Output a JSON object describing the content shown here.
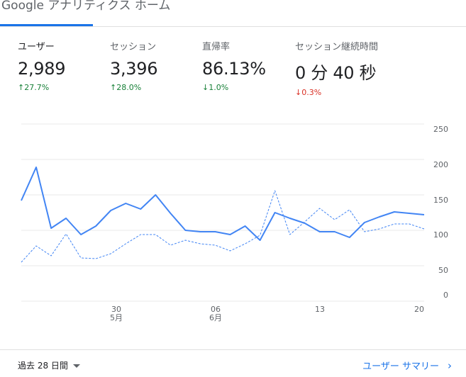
{
  "header": {
    "title": "Google アナリティクス ホーム"
  },
  "metrics": [
    {
      "label": "ユーザー",
      "value": "2,989",
      "change": "27.7%",
      "direction": "up"
    },
    {
      "label": "セッション",
      "value": "3,396",
      "change": "28.0%",
      "direction": "up"
    },
    {
      "label": "直帰率",
      "value": "86.13%",
      "change": "1.0%",
      "direction": "down_good"
    },
    {
      "label": "セッション継続時間",
      "value": "0 分 40 秒",
      "change": "0.3%",
      "direction": "down"
    }
  ],
  "chart_data": {
    "type": "line",
    "y_ticks": [
      "250",
      "200",
      "150",
      "100",
      "50",
      "0"
    ],
    "x_ticks": [
      {
        "day": "30",
        "month": "5月"
      },
      {
        "day": "06",
        "month": "6月"
      },
      {
        "day": "13",
        "month": ""
      },
      {
        "day": "20",
        "month": ""
      }
    ],
    "series": [
      {
        "style": "solid",
        "color": "#4285f4",
        "values": [
          142,
          189,
          103,
          117,
          94,
          106,
          128,
          138,
          130,
          150,
          124,
          100,
          98,
          98,
          94,
          106,
          86,
          125,
          117,
          110,
          98,
          98,
          90,
          111,
          119,
          126,
          124,
          122
        ]
      },
      {
        "style": "dashed",
        "color": "#4285f4",
        "values": [
          55,
          78,
          64,
          95,
          61,
          60,
          67,
          81,
          94,
          94,
          79,
          86,
          81,
          79,
          71,
          81,
          93,
          156,
          94,
          112,
          131,
          115,
          129,
          98,
          102,
          109,
          109,
          102
        ]
      }
    ],
    "y_range": [
      0,
      260
    ],
    "grid": true
  },
  "footer": {
    "date_range": "過去 28 日間",
    "report_link": "ユーザー サマリー"
  },
  "colors": {
    "accent": "#1a73e8",
    "line": "#4285f4",
    "up": "#188038",
    "down": "#d93025"
  }
}
